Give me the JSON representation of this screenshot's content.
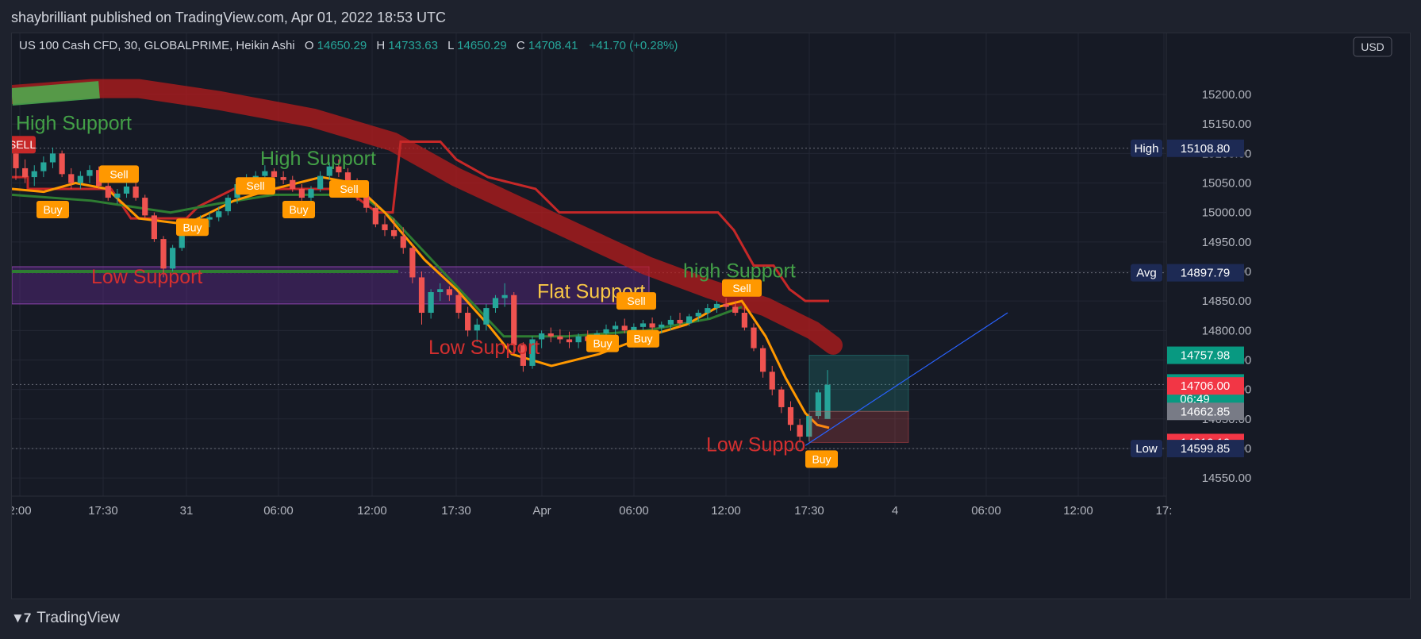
{
  "publisher": "shaybrilliant published on TradingView.com, Apr 01, 2022 18:53 UTC",
  "header": {
    "symbol": "US 100 Cash CFD, 30, GLOBALPRIME, Heikin Ashi",
    "o_label": "O",
    "o_value": "14650.29",
    "h_label": "H",
    "h_value": "14733.63",
    "l_label": "L",
    "l_value": "14650.29",
    "c_label": "C",
    "c_value": "14708.41",
    "change": "+41.70 (+0.28%)"
  },
  "currency": "USD",
  "footer_brand": "TradingView",
  "colors": {
    "up": "#26a69a",
    "down": "#ef5350",
    "bg": "#161a25",
    "orange": "#ff9800",
    "support_green": "#43a047",
    "support_red": "#d32f2f",
    "flat_yellow": "#f9c846",
    "purple_box": "#4a1a6a",
    "ribbon": "#b71c1c"
  },
  "chart_data": {
    "type": "candlestick",
    "style": "Heikin Ashi",
    "timeframe": "30",
    "ylim": [
      14530,
      15270
    ],
    "y_ticks": [
      15200.0,
      15150.0,
      15100.0,
      15050.0,
      15000.0,
      14950.0,
      14900.0,
      14850.0,
      14800.0,
      14750.0,
      14700.0,
      14650.0,
      14600.0,
      14550.0
    ],
    "y_tick_labels": [
      "15200.00",
      "15150.00",
      "15100.00",
      "15050.00",
      "15000.00",
      "14950.00",
      "14900.00",
      "14850.00",
      "14800.00",
      "14750.00",
      "14700.00",
      "14650.00",
      "14600.00",
      "14550.00"
    ],
    "x_tick_labels": [
      "2:00",
      "17:30",
      "31",
      "06:00",
      "12:00",
      "17:30",
      "Apr",
      "06:00",
      "12:00",
      "17:30",
      "4",
      "06:00",
      "12:00",
      "17:"
    ],
    "price_labels": [
      {
        "name": "High",
        "value": "15108.80",
        "price": 15108.8,
        "bg": "#1d2a54"
      },
      {
        "name": "Avg",
        "value": "14897.79",
        "price": 14897.79,
        "bg": "#1d2a54"
      },
      {
        "name": "",
        "value": "14757.98",
        "price": 14757.98,
        "bg": "#089981"
      },
      {
        "name": "",
        "value": "14708.41",
        "sub": "06:49",
        "price": 14708.41,
        "bg": "#089981"
      },
      {
        "name": "",
        "value": "14706.00",
        "price": 14706.0,
        "bg": "#f23645"
      },
      {
        "name": "",
        "value": "14662.85",
        "price": 14662.85,
        "bg": "#787b86"
      },
      {
        "name": "",
        "value": "14610.10",
        "price": 14610.1,
        "bg": "#f23645"
      },
      {
        "name": "Low",
        "value": "14599.85",
        "price": 14599.85,
        "bg": "#1d2a54"
      }
    ],
    "annotations": [
      {
        "text": "High Support",
        "color": "#43a047"
      },
      {
        "text": "High Support",
        "color": "#43a047"
      },
      {
        "text": "high Support",
        "color": "#43a047"
      },
      {
        "text": "Low Support",
        "color": "#d32f2f"
      },
      {
        "text": "Low Support",
        "color": "#d32f2f"
      },
      {
        "text": "Low Suppo",
        "color": "#d32f2f"
      },
      {
        "text": "Flat Support",
        "color": "#f9c846"
      }
    ],
    "signals": [
      {
        "text": "SELL",
        "kind": "sell-big"
      },
      {
        "text": "Sell",
        "kind": "sell"
      },
      {
        "text": "Sell",
        "kind": "sell"
      },
      {
        "text": "Sell",
        "kind": "sell"
      },
      {
        "text": "Sell",
        "kind": "sell"
      },
      {
        "text": "Sell",
        "kind": "sell"
      },
      {
        "text": "Buy",
        "kind": "buy"
      },
      {
        "text": "Buy",
        "kind": "buy"
      },
      {
        "text": "Buy",
        "kind": "buy"
      },
      {
        "text": "Buy",
        "kind": "buy"
      },
      {
        "text": "Buy",
        "kind": "buy"
      },
      {
        "text": "Buy",
        "kind": "buy"
      }
    ],
    "candles": [
      [
        15100,
        15120,
        15055,
        15075
      ],
      [
        15075,
        15090,
        15050,
        15060
      ],
      [
        15060,
        15080,
        15045,
        15070
      ],
      [
        15070,
        15095,
        15060,
        15085
      ],
      [
        15085,
        15110,
        15075,
        15100
      ],
      [
        15100,
        15105,
        15060,
        15065
      ],
      [
        15065,
        15075,
        15040,
        15050
      ],
      [
        15050,
        15070,
        15040,
        15062
      ],
      [
        15062,
        15080,
        15050,
        15072
      ],
      [
        15072,
        15078,
        15040,
        15045
      ],
      [
        15045,
        15050,
        15020,
        15025
      ],
      [
        15025,
        15040,
        15015,
        15032
      ],
      [
        15032,
        15050,
        15025,
        15044
      ],
      [
        15044,
        15050,
        15020,
        15025
      ],
      [
        15025,
        15030,
        14990,
        14995
      ],
      [
        14995,
        15000,
        14950,
        14955
      ],
      [
        14955,
        14960,
        14890,
        14905
      ],
      [
        14905,
        14945,
        14900,
        14940
      ],
      [
        14940,
        14975,
        14935,
        14968
      ],
      [
        14968,
        14990,
        14960,
        14982
      ],
      [
        14982,
        14995,
        14970,
        14988
      ],
      [
        14988,
        15000,
        14975,
        14992
      ],
      [
        14992,
        15010,
        14985,
        15002
      ],
      [
        15002,
        15030,
        14995,
        15025
      ],
      [
        15025,
        15055,
        15015,
        15048
      ],
      [
        15048,
        15065,
        15040,
        15058
      ],
      [
        15058,
        15070,
        15045,
        15062
      ],
      [
        15062,
        15080,
        15055,
        15070
      ],
      [
        15070,
        15075,
        15050,
        15060
      ],
      [
        15060,
        15070,
        15048,
        15055
      ],
      [
        15055,
        15062,
        15035,
        15040
      ],
      [
        15040,
        15048,
        15020,
        15025
      ],
      [
        15025,
        15045,
        15015,
        15040
      ],
      [
        15040,
        15070,
        15035,
        15062
      ],
      [
        15062,
        15085,
        15055,
        15078
      ],
      [
        15078,
        15090,
        15060,
        15068
      ],
      [
        15068,
        15075,
        15045,
        15050
      ],
      [
        15050,
        15058,
        15020,
        15028
      ],
      [
        15028,
        15040,
        15000,
        15008
      ],
      [
        15008,
        15015,
        14975,
        14980
      ],
      [
        14980,
        14995,
        14960,
        14970
      ],
      [
        14970,
        14990,
        14955,
        14960
      ],
      [
        14960,
        14975,
        14930,
        14940
      ],
      [
        14940,
        14945,
        14880,
        14890
      ],
      [
        14890,
        14900,
        14810,
        14830
      ],
      [
        14830,
        14870,
        14820,
        14865
      ],
      [
        14865,
        14880,
        14850,
        14870
      ],
      [
        14870,
        14875,
        14850,
        14860
      ],
      [
        14860,
        14865,
        14820,
        14830
      ],
      [
        14830,
        14840,
        14790,
        14800
      ],
      [
        14800,
        14820,
        14780,
        14810
      ],
      [
        14810,
        14845,
        14800,
        14838
      ],
      [
        14838,
        14860,
        14830,
        14855
      ],
      [
        14855,
        14880,
        14840,
        14860
      ],
      [
        14860,
        14865,
        14760,
        14775
      ],
      [
        14775,
        14780,
        14730,
        14740
      ],
      [
        14740,
        14790,
        14735,
        14785
      ],
      [
        14785,
        14800,
        14770,
        14795
      ],
      [
        14795,
        14805,
        14780,
        14790
      ],
      [
        14790,
        14802,
        14778,
        14785
      ],
      [
        14785,
        14798,
        14770,
        14780
      ],
      [
        14780,
        14795,
        14770,
        14790
      ],
      [
        14790,
        14800,
        14775,
        14782
      ],
      [
        14782,
        14800,
        14776,
        14795
      ],
      [
        14795,
        14810,
        14785,
        14802
      ],
      [
        14802,
        14815,
        14790,
        14808
      ],
      [
        14808,
        14820,
        14795,
        14800
      ],
      [
        14800,
        14812,
        14790,
        14806
      ],
      [
        14806,
        14818,
        14795,
        14812
      ],
      [
        14812,
        14822,
        14800,
        14805
      ],
      [
        14805,
        14815,
        14795,
        14810
      ],
      [
        14810,
        14825,
        14800,
        14818
      ],
      [
        14818,
        14830,
        14805,
        14812
      ],
      [
        14812,
        14828,
        14808,
        14824
      ],
      [
        14824,
        14835,
        14815,
        14830
      ],
      [
        14830,
        14845,
        14820,
        14838
      ],
      [
        14838,
        14850,
        14830,
        14845
      ],
      [
        14845,
        14855,
        14835,
        14840
      ],
      [
        14840,
        14850,
        14825,
        14830
      ],
      [
        14830,
        14840,
        14800,
        14805
      ],
      [
        14805,
        14812,
        14765,
        14770
      ],
      [
        14770,
        14775,
        14720,
        14730
      ],
      [
        14730,
        14740,
        14690,
        14700
      ],
      [
        14700,
        14705,
        14660,
        14670
      ],
      [
        14670,
        14680,
        14630,
        14640
      ],
      [
        14640,
        14650,
        14610,
        14620
      ],
      [
        14620,
        14660,
        14612,
        14655
      ],
      [
        14655,
        14700,
        14650,
        14695
      ],
      [
        14650,
        14733,
        14650,
        14708
      ]
    ]
  }
}
